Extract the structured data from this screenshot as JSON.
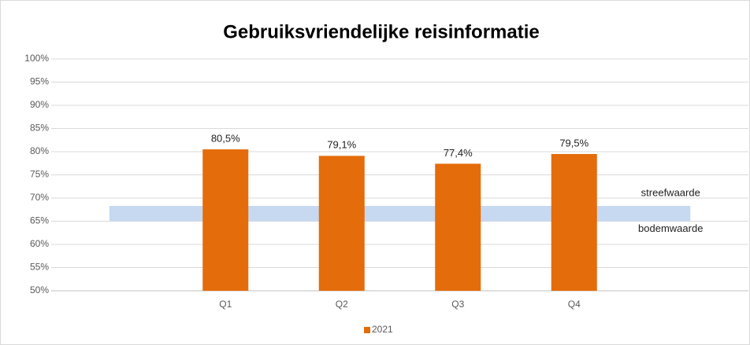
{
  "chart_data": {
    "type": "bar",
    "title": "Gebruiksvriendelijke reisinformatie",
    "categories": [
      null,
      "Q1",
      "Q2",
      "Q3",
      "Q4",
      null
    ],
    "series": [
      {
        "name": "2021",
        "color": "#e46c0a",
        "values": [
          null,
          80.5,
          79.1,
          77.4,
          79.5,
          null
        ],
        "value_labels": [
          null,
          "80,5%",
          "79,1%",
          "77,4%",
          "79,5%",
          null
        ]
      }
    ],
    "target_band": {
      "low": 65,
      "high": 68.3,
      "low_label": "bodemwaarde",
      "high_label": "streefwaarde",
      "color": "#c6d9f1"
    },
    "ylim": [
      50,
      100
    ],
    "yticks": [
      {
        "value": 50,
        "label": "50%"
      },
      {
        "value": 55,
        "label": "55%"
      },
      {
        "value": 60,
        "label": "60%"
      },
      {
        "value": 65,
        "label": "65%"
      },
      {
        "value": 70,
        "label": "70%"
      },
      {
        "value": 75,
        "label": "75%"
      },
      {
        "value": 80,
        "label": "80%"
      },
      {
        "value": 85,
        "label": "85%"
      },
      {
        "value": 90,
        "label": "90%"
      },
      {
        "value": 95,
        "label": "95%"
      },
      {
        "value": 100,
        "label": "100%"
      }
    ],
    "grid": true,
    "legend": "bottom"
  }
}
